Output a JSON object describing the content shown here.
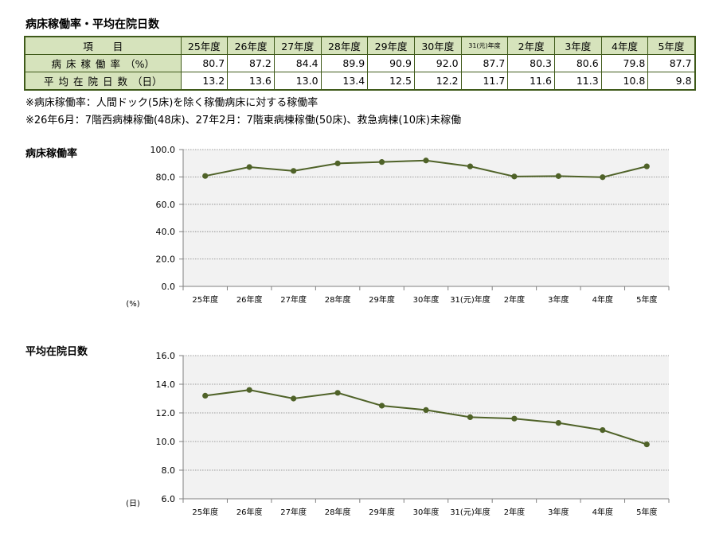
{
  "title": "病床稼働率・平均在院日数",
  "table": {
    "header_label": "項　　目",
    "years": [
      "25年度",
      "26年度",
      "27年度",
      "28年度",
      "29年度",
      "30年度",
      "31(元)年度",
      "2年度",
      "3年度",
      "4年度",
      "5年度"
    ],
    "rows": [
      {
        "label": "病床稼働率",
        "unit": "（%）",
        "values": [
          "80.7",
          "87.2",
          "84.4",
          "89.9",
          "90.9",
          "92.0",
          "87.7",
          "80.3",
          "80.6",
          "79.8",
          "87.7"
        ]
      },
      {
        "label": "平均在院日数",
        "unit": "（日）",
        "values": [
          "13.2",
          "13.6",
          "13.0",
          "13.4",
          "12.5",
          "12.2",
          "11.7",
          "11.6",
          "11.3",
          "10.8",
          "9.8"
        ]
      }
    ]
  },
  "notes": [
    "※病床稼働率：人間ドック(5床)を除く稼働病床に対する稼働率",
    "※26年6月：7階西病棟稼働(48床)、27年2月：7階東病棟稼働(50床)、救急病棟(10床)未稼働"
  ],
  "colors": {
    "line": "#4f6228",
    "plot_bg": "#f2f2f2",
    "table_head_bg": "#d6e3bc",
    "table_border": "#3f5a1a"
  },
  "chart_data": [
    {
      "type": "line",
      "title": "病床稼働率",
      "unit_label": "(%)",
      "categories": [
        "25年度",
        "26年度",
        "27年度",
        "28年度",
        "29年度",
        "30年度",
        "31(元)年度",
        "2年度",
        "3年度",
        "4年度",
        "5年度"
      ],
      "series": [
        {
          "values": [
            80.7,
            87.2,
            84.4,
            89.9,
            90.9,
            92.0,
            87.7,
            80.3,
            80.6,
            79.8,
            87.7
          ]
        }
      ],
      "ylim": [
        0,
        100
      ],
      "yticks": [
        "0.0",
        "20.0",
        "40.0",
        "60.0",
        "80.0",
        "100.0"
      ],
      "grid": true
    },
    {
      "type": "line",
      "title": "平均在院日数",
      "unit_label": "(日)",
      "categories": [
        "25年度",
        "26年度",
        "27年度",
        "28年度",
        "29年度",
        "30年度",
        "31(元)年度",
        "2年度",
        "3年度",
        "4年度",
        "5年度"
      ],
      "series": [
        {
          "values": [
            13.2,
            13.6,
            13.0,
            13.4,
            12.5,
            12.2,
            11.7,
            11.6,
            11.3,
            10.8,
            9.8
          ]
        }
      ],
      "ylim": [
        6,
        16
      ],
      "yticks": [
        "6.0",
        "8.0",
        "10.0",
        "12.0",
        "14.0",
        "16.0"
      ],
      "grid": true
    }
  ]
}
